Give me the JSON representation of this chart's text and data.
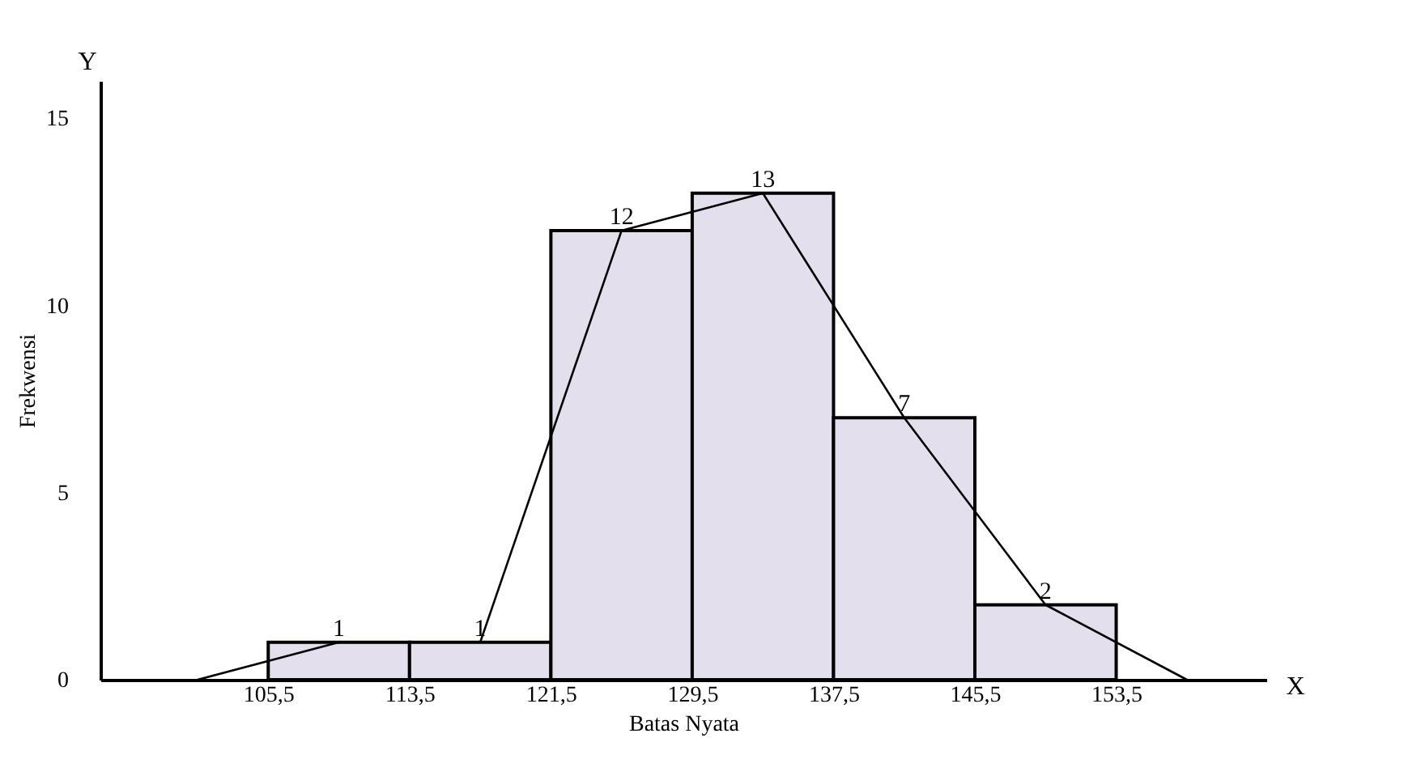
{
  "chart_data": {
    "type": "histogram",
    "xlabel": "Batas Nyata",
    "ylabel": "Frekwensi",
    "bins": [
      105.5,
      113.5,
      121.5,
      129.5,
      137.5,
      145.5,
      153.5
    ],
    "values": [
      1,
      1,
      12,
      13,
      7,
      2
    ],
    "color": "#e4dfec",
    "series": [
      {
        "type": "line",
        "x": [
          101.5,
          109.5,
          117.5,
          125.5,
          133.5,
          141.5,
          149.5,
          157.5
        ],
        "values": [
          0,
          1,
          1,
          12,
          13,
          7,
          2,
          0
        ],
        "value_labels": [
          null,
          "1",
          "1",
          "12",
          "13",
          "7",
          "2",
          null
        ],
        "color": "#000000"
      }
    ],
    "xlim": [
      96,
      162
    ],
    "ylim": [
      0,
      16
    ],
    "xticks": [
      {
        "value": 105.5,
        "label": "105,5"
      },
      {
        "value": 113.5,
        "label": "113,5"
      },
      {
        "value": 121.5,
        "label": "121,5"
      },
      {
        "value": 129.5,
        "label": "129,5"
      },
      {
        "value": 137.5,
        "label": "137,5"
      },
      {
        "value": 145.5,
        "label": "145,5"
      },
      {
        "value": 153.5,
        "label": "153,5"
      }
    ],
    "yticks": [
      0,
      5,
      10,
      15
    ],
    "annotations": [
      "X",
      "Y"
    ],
    "grid": false
  }
}
